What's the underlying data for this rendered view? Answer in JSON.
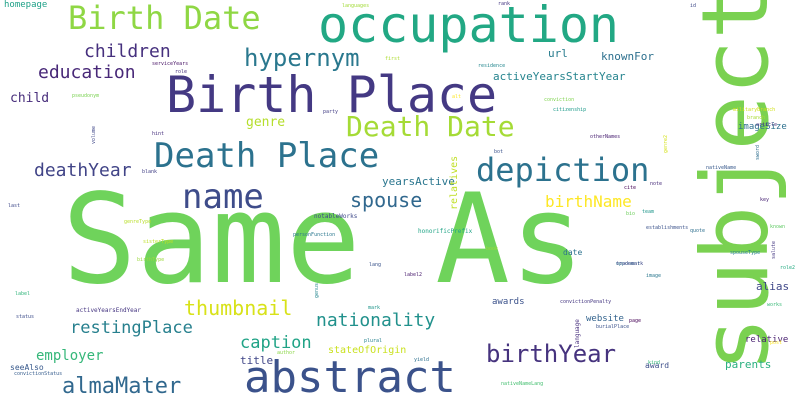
{
  "words": [
    {
      "text": "Same As",
      "color": "#6fd35b",
      "vertical": false
    },
    {
      "text": "subject",
      "color": "#7ad151",
      "vertical": true
    },
    {
      "text": "occupation",
      "color": "#22a884",
      "vertical": false
    },
    {
      "text": "Birth Place",
      "color": "#443983",
      "vertical": false
    },
    {
      "text": "abstract",
      "color": "#3b528b",
      "vertical": false
    },
    {
      "text": "Birth Date",
      "color": "#8fd744",
      "vertical": false
    },
    {
      "text": "Death Place",
      "color": "#2c728e",
      "vertical": false
    },
    {
      "text": "Death Date",
      "color": "#a5db36",
      "vertical": false
    },
    {
      "text": "name",
      "color": "#3e4c8a",
      "vertical": false
    },
    {
      "text": "depiction",
      "color": "#2c728e",
      "vertical": false
    },
    {
      "text": "hypernym",
      "color": "#2a788e",
      "vertical": false
    },
    {
      "text": "birthYear",
      "color": "#46337e",
      "vertical": false
    },
    {
      "text": "almaMater",
      "color": "#31688e",
      "vertical": false
    },
    {
      "text": "thumbnail",
      "color": "#d8e219",
      "vertical": false
    },
    {
      "text": "children",
      "color": "#46307e",
      "vertical": false
    },
    {
      "text": "education",
      "color": "#482878",
      "vertical": false
    },
    {
      "text": "deathYear",
      "color": "#414487",
      "vertical": false
    },
    {
      "text": "spouse",
      "color": "#31688e",
      "vertical": false
    },
    {
      "text": "birthName",
      "color": "#fde725",
      "vertical": false
    },
    {
      "text": "nationality",
      "color": "#21918c",
      "vertical": false
    },
    {
      "text": "restingPlace",
      "color": "#27808e",
      "vertical": false
    },
    {
      "text": "caption",
      "color": "#20a386",
      "vertical": false
    },
    {
      "text": "employer",
      "color": "#35b779",
      "vertical": false
    },
    {
      "text": "child",
      "color": "#472d7b",
      "vertical": false
    },
    {
      "text": "genre",
      "color": "#b5de2b",
      "vertical": false
    },
    {
      "text": "alias",
      "color": "#3f4788",
      "vertical": false
    },
    {
      "text": "knownFor",
      "color": "#2d708e",
      "vertical": false
    },
    {
      "text": "url",
      "color": "#287c8e",
      "vertical": false
    },
    {
      "text": "activeYearsStartYear",
      "color": "#25848e",
      "vertical": false
    },
    {
      "text": "yearsActive",
      "color": "#2a768e",
      "vertical": false
    },
    {
      "text": "awards",
      "color": "#3b528b",
      "vertical": false
    },
    {
      "text": "website",
      "color": "#33638d",
      "vertical": false
    },
    {
      "text": "parents",
      "color": "#29af7f",
      "vertical": false
    },
    {
      "text": "relative",
      "color": "#481f70",
      "vertical": false
    },
    {
      "text": "imageSize",
      "color": "#2d708e",
      "vertical": false
    },
    {
      "text": "title",
      "color": "#404688",
      "vertical": false
    },
    {
      "text": "stateOfOrigin",
      "color": "#cae11f",
      "vertical": false
    },
    {
      "text": "relatives",
      "color": "#c0df25",
      "vertical": true
    },
    {
      "text": "homepage",
      "color": "#1fa188",
      "vertical": false
    },
    {
      "text": "seeAlso",
      "color": "#38598c",
      "vertical": false
    },
    {
      "text": "award",
      "color": "#3d4e8a",
      "vertical": false
    },
    {
      "text": "date",
      "color": "#2c728e",
      "vertical": false
    },
    {
      "text": "notableWorks",
      "color": "#3e4989",
      "vertical": false
    },
    {
      "text": "honorificPrefix",
      "color": "#20a486",
      "vertical": false
    },
    {
      "text": "activeYearsEndYear",
      "color": "#453581",
      "vertical": false
    },
    {
      "text": "article",
      "color": "#46337e",
      "vertical": false
    },
    {
      "text": "convictionPenalty",
      "color": "#453781",
      "vertical": false
    },
    {
      "text": "burialPlace",
      "color": "#3b528b",
      "vertical": false
    },
    {
      "text": "language",
      "color": "#472f7d",
      "vertical": true
    },
    {
      "text": "party",
      "color": "#433e85",
      "vertical": false
    },
    {
      "text": "citizenship",
      "color": "#1e9b8a",
      "vertical": false
    },
    {
      "text": "otherNames",
      "color": "#482071",
      "vertical": false
    },
    {
      "text": "residence",
      "color": "#24878e",
      "vertical": false
    },
    {
      "text": "page",
      "color": "#440154",
      "vertical": false
    },
    {
      "text": "personFunction",
      "color": "#2a778e",
      "vertical": false
    },
    {
      "text": "convictionStatus",
      "color": "#365d8d",
      "vertical": false
    },
    {
      "text": "serviceYears",
      "color": "#471365",
      "vertical": false
    },
    {
      "text": "conviction",
      "color": "#7fd34e",
      "vertical": false
    },
    {
      "text": "nativeName",
      "color": "#38598c",
      "vertical": false
    },
    {
      "text": "branch",
      "color": "#a8db34",
      "vertical": false
    },
    {
      "text": "militaryBranch",
      "color": "#d0e11c",
      "vertical": false
    },
    {
      "text": "nativeNameLang",
      "color": "#44bf70",
      "vertical": false
    },
    {
      "text": "first",
      "color": "#addc30",
      "vertical": false
    },
    {
      "text": "last",
      "color": "#3e4989",
      "vertical": false
    },
    {
      "text": "author",
      "color": "#8bd646",
      "vertical": false
    },
    {
      "text": "quote",
      "color": "#2e6f8e",
      "vertical": false
    },
    {
      "text": "team",
      "color": "#1f968b",
      "vertical": false
    },
    {
      "text": "label",
      "color": "#31b57b",
      "vertical": false
    },
    {
      "text": "pseudonym",
      "color": "#7ad151",
      "vertical": false
    },
    {
      "text": "lang",
      "color": "#3a538b",
      "vertical": false
    },
    {
      "text": "bot",
      "color": "#3b528b",
      "vertical": false
    },
    {
      "text": "volume",
      "color": "#3f4788",
      "vertical": true
    },
    {
      "text": "role",
      "color": "#46307e",
      "vertical": false
    },
    {
      "text": "cite",
      "color": "#440154",
      "vertical": false
    },
    {
      "text": "genreType",
      "color": "#b8de29",
      "vertical": false
    },
    {
      "text": "sisterType",
      "color": "#bddf26",
      "vertical": false
    },
    {
      "text": "birthType",
      "color": "#9bd93c",
      "vertical": false
    },
    {
      "text": "status",
      "color": "#3d4d8a",
      "vertical": false
    },
    {
      "text": "opponent",
      "color": "#2d718e",
      "vertical": false
    },
    {
      "text": "works",
      "color": "#38b977",
      "vertical": false
    },
    {
      "text": "salute",
      "color": "#453882",
      "vertical": true
    },
    {
      "text": "genus",
      "color": "#24868e",
      "vertical": true
    },
    {
      "text": "book",
      "color": "#9dd93b",
      "vertical": false
    },
    {
      "text": "post",
      "color": "#fde725",
      "vertical": false
    },
    {
      "text": "rank",
      "color": "#453882",
      "vertical": false
    },
    {
      "text": "spouseType",
      "color": "#277f8e",
      "vertical": false
    },
    {
      "text": "image",
      "color": "#2a778e",
      "vertical": false
    },
    {
      "text": "languages",
      "color": "#a2da37",
      "vertical": false
    },
    {
      "text": "label2",
      "color": "#481b6d",
      "vertical": false
    },
    {
      "text": "known",
      "color": "#5ec962",
      "vertical": false
    },
    {
      "text": "trademark",
      "color": "#3e4989",
      "vertical": false
    },
    {
      "text": "establishments",
      "color": "#3b528b",
      "vertical": false
    },
    {
      "text": "note",
      "color": "#472c7a",
      "vertical": false
    },
    {
      "text": "bio",
      "color": "#6ccd5a",
      "vertical": false
    },
    {
      "text": "yield",
      "color": "#2d708e",
      "vertical": false
    },
    {
      "text": "kind",
      "color": "#35b779",
      "vertical": false
    },
    {
      "text": "plural",
      "color": "#26828e",
      "vertical": false
    },
    {
      "text": "blank",
      "color": "#424086",
      "vertical": false
    },
    {
      "text": "sword",
      "color": "#2e6e8e",
      "vertical": true
    },
    {
      "text": "role2",
      "color": "#25ab82",
      "vertical": false
    },
    {
      "text": "genre2",
      "color": "#d5e21a",
      "vertical": true
    },
    {
      "text": "mark",
      "color": "#1f958b",
      "vertical": false
    },
    {
      "text": "hint",
      "color": "#462f7d",
      "vertical": false
    },
    {
      "text": "alt",
      "color": "#fde725",
      "vertical": false
    },
    {
      "text": "id",
      "color": "#3e4a89",
      "vertical": false
    },
    {
      "text": "key",
      "color": "#482475",
      "vertical": false
    }
  ]
}
